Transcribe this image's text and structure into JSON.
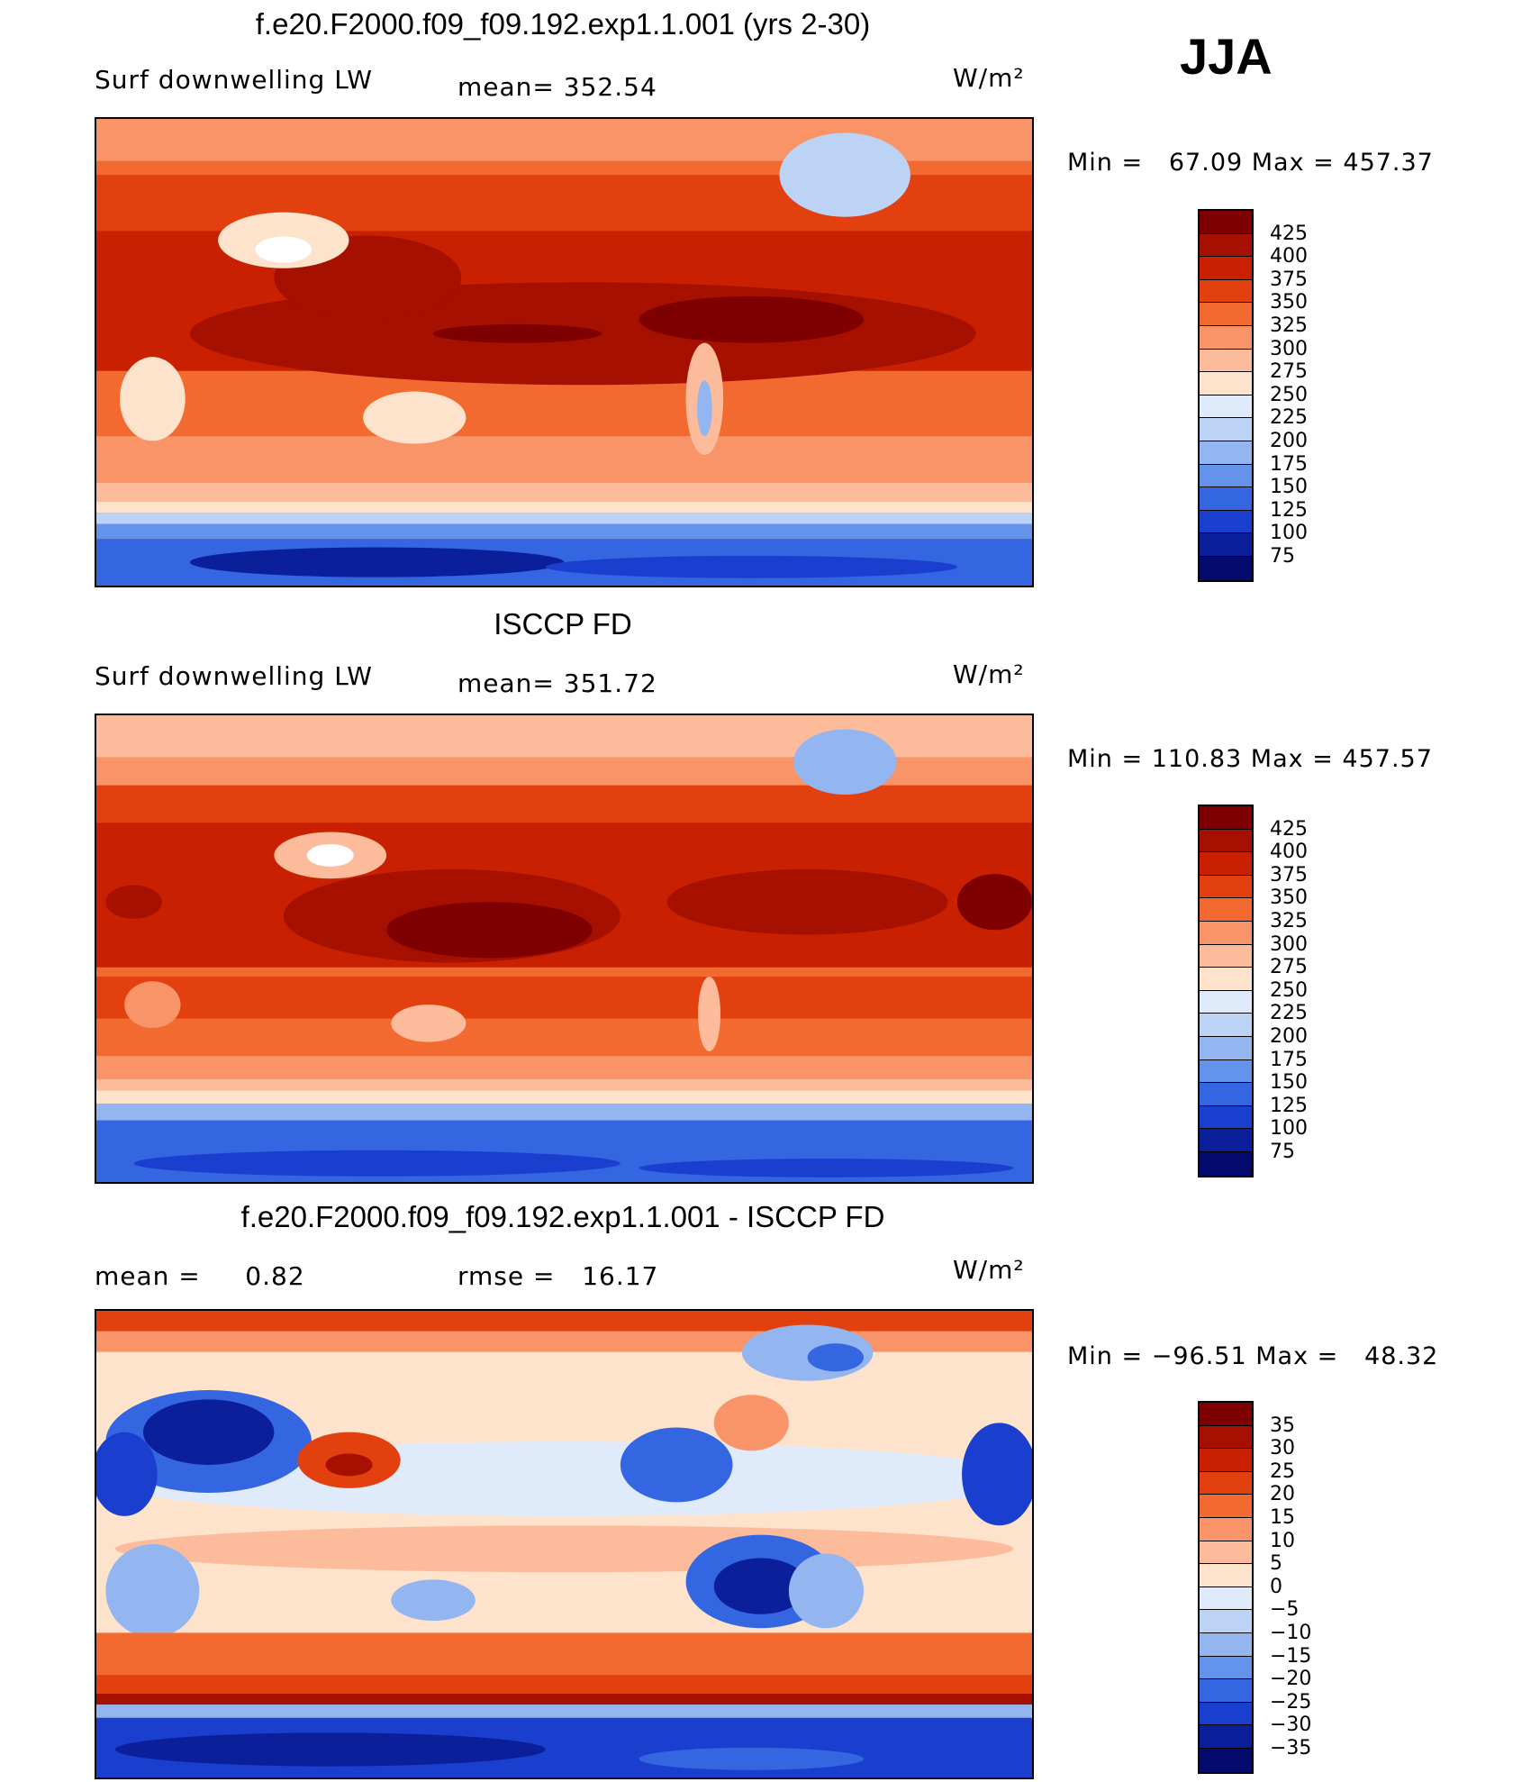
{
  "season": "JJA",
  "units": "W/m²",
  "panels": [
    {
      "id": "model",
      "title": "f.e20.F2000.f09_f09.192.exp1.1.001 (yrs 2-30)",
      "variable": "Surf downwelling LW",
      "stat1_label": "mean=",
      "stat1_value": "352.54",
      "stat2_label": "",
      "stat2_value": "",
      "min_label": "Min",
      "min_value": "67.09",
      "max_label": "Max",
      "max_value": "457.37",
      "levels": [
        "425",
        "400",
        "375",
        "350",
        "325",
        "300",
        "275",
        "250",
        "225",
        "200",
        "175",
        "150",
        "125",
        "100",
        "75"
      ]
    },
    {
      "id": "obs",
      "title": "ISCCP FD",
      "variable": "Surf downwelling LW",
      "stat1_label": "mean=",
      "stat1_value": "351.72",
      "stat2_label": "",
      "stat2_value": "",
      "min_label": "Min",
      "min_value": "110.83",
      "max_label": "Max",
      "max_value": "457.57",
      "levels": [
        "425",
        "400",
        "375",
        "350",
        "325",
        "300",
        "275",
        "250",
        "225",
        "200",
        "175",
        "150",
        "125",
        "100",
        "75"
      ]
    },
    {
      "id": "diff",
      "title": "f.e20.F2000.f09_f09.192.exp1.1.001 - ISCCP FD",
      "variable": "",
      "stat1_label": "mean =",
      "stat1_value": "0.82",
      "stat2_label": "rmse =",
      "stat2_value": "16.17",
      "min_label": "Min",
      "min_value": "−96.51",
      "max_label": "Max",
      "max_value": "48.32",
      "levels": [
        "35",
        "30",
        "25",
        "20",
        "15",
        "10",
        "5",
        "0",
        "−5",
        "−10",
        "−15",
        "−20",
        "−25",
        "−30",
        "−35"
      ]
    }
  ],
  "colorbar_colors": [
    "#7f0000",
    "#a51000",
    "#c82000",
    "#e2400e",
    "#f26a30",
    "#f99468",
    "#fcbc9c",
    "#fde2cc",
    "#dfeafa",
    "#bcd3f6",
    "#93b5f0",
    "#6393ea",
    "#3566e2",
    "#1a3fcf",
    "#0b1f9a",
    "#050a6e"
  ]
}
